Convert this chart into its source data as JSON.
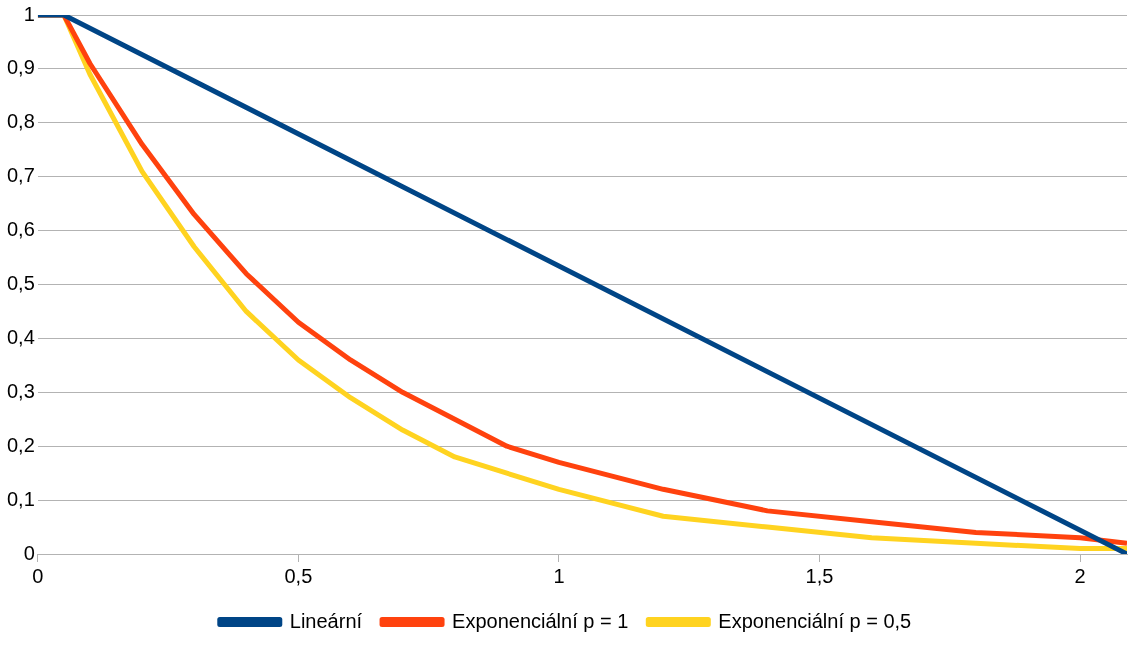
{
  "chart_data": {
    "type": "line",
    "xlim": [
      0,
      2.09
    ],
    "xticks": [
      0,
      {
        "value": 0.5,
        "label": "0,5"
      },
      1,
      {
        "value": 1.5,
        "label": "1,5"
      },
      2
    ],
    "ylim": [
      0,
      1
    ],
    "yticks": [
      0,
      {
        "value": 0.1,
        "label": "0,1"
      },
      {
        "value": 0.2,
        "label": "0,2"
      },
      {
        "value": 0.3,
        "label": "0,3"
      },
      {
        "value": 0.4,
        "label": "0,4"
      },
      {
        "value": 0.5,
        "label": "0,5"
      },
      {
        "value": 0.6,
        "label": "0,6"
      },
      {
        "value": 0.7,
        "label": "0,7"
      },
      {
        "value": 0.8,
        "label": "0,8"
      },
      {
        "value": 0.9,
        "label": "0,9"
      },
      1
    ],
    "grid": "y",
    "legend": "bottom",
    "marker": "none",
    "line_style": "solid",
    "series": [
      {
        "name": "Lineární",
        "color": "#004586",
        "x": [
          0,
          0.05,
          2.09
        ],
        "values": [
          1,
          1,
          0
        ]
      },
      {
        "name": "Exponenciální p = 1",
        "color": "#ff420e",
        "x": [
          0,
          0.05,
          0.1,
          0.2,
          0.3,
          0.4,
          0.5,
          0.6,
          0.7,
          0.8,
          0.9,
          1.0,
          1.2,
          1.4,
          1.6,
          1.8,
          2.0,
          2.09
        ],
        "values": [
          1,
          1,
          0.91,
          0.76,
          0.63,
          0.52,
          0.43,
          0.36,
          0.3,
          0.25,
          0.2,
          0.17,
          0.12,
          0.08,
          0.06,
          0.04,
          0.03,
          0.02
        ]
      },
      {
        "name": "Exponenciální p = 0,5",
        "color": "#ffd320",
        "x": [
          0,
          0.05,
          0.1,
          0.2,
          0.3,
          0.4,
          0.5,
          0.6,
          0.7,
          0.8,
          0.9,
          1.0,
          1.2,
          1.4,
          1.6,
          1.8,
          2.0,
          2.09
        ],
        "values": [
          1,
          1,
          0.89,
          0.71,
          0.57,
          0.45,
          0.36,
          0.29,
          0.23,
          0.18,
          0.15,
          0.12,
          0.07,
          0.05,
          0.03,
          0.02,
          0.01,
          0.01
        ]
      }
    ]
  }
}
